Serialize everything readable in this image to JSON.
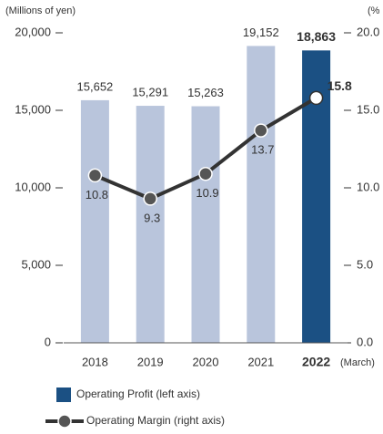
{
  "chart_data": {
    "type": "bar_line",
    "y_label": "(Millions of yen)",
    "y2_label": "(%",
    "x_label": "(March)",
    "categories": [
      "2018",
      "2019",
      "2020",
      "2021",
      "2022"
    ],
    "highlight_index": 4,
    "series": [
      {
        "name": "Operating Profit (left axis)",
        "type": "bar",
        "color": "#1b5083",
        "colors": [
          "#b9c5dc",
          "#b9c5dc",
          "#b9c5dc",
          "#b9c5dc",
          "#1b5083"
        ],
        "values": [
          15652,
          15291,
          15263,
          19152,
          18863
        ],
        "value_labels": [
          "15,652",
          "15,291",
          "15,263",
          "19,152",
          "18,863"
        ]
      },
      {
        "name": "Operating Margin (right axis)",
        "type": "line",
        "axis": "y2",
        "color": "#333333",
        "marker_color": "#555555",
        "values": [
          10.8,
          9.3,
          10.9,
          13.7,
          15.8
        ]
      }
    ],
    "ylim": [
      0,
      20000
    ],
    "yticks": [
      0,
      {
        "value": 5000,
        "label": "5,000"
      },
      {
        "value": 10000,
        "label": "10,000"
      },
      {
        "value": 15000,
        "label": "15,000"
      },
      {
        "value": 20000,
        "label": "20,000"
      }
    ],
    "y2lim": [
      0,
      20
    ],
    "y2ticks": [
      {
        "value": 0,
        "label": "0.0"
      },
      {
        "value": 5,
        "label": "5.0"
      },
      {
        "value": 10,
        "label": "10.0"
      },
      {
        "value": 15,
        "label": "15.0"
      },
      {
        "value": 20,
        "label": "20.0"
      }
    ]
  }
}
